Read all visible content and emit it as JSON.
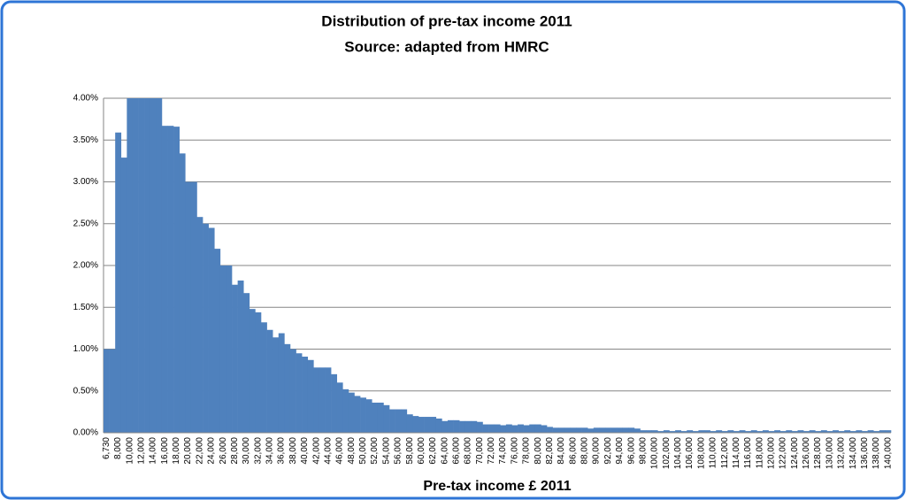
{
  "chart_data": {
    "type": "bar",
    "title": "Distribution of pre-tax income 2011",
    "subtitle": "Source: adapted from HMRC",
    "x_label": "Pre-tax income £ 2011",
    "color": "#4f81bd",
    "grid": true,
    "ylim": [
      0,
      4
    ],
    "yticks": [
      {
        "value": 0,
        "label": "0.00%"
      },
      {
        "value": 0.5,
        "label": "0.50%"
      },
      {
        "value": 1,
        "label": "1.00%"
      },
      {
        "value": 1.5,
        "label": "1.50%"
      },
      {
        "value": 2,
        "label": "2.00%"
      },
      {
        "value": 2.5,
        "label": "2.50%"
      },
      {
        "value": 3,
        "label": "3.00%"
      },
      {
        "value": 3.5,
        "label": "3.50%"
      },
      {
        "value": 4,
        "label": "4.00%"
      }
    ],
    "categories": [
      "6,730",
      null,
      "8,000",
      null,
      "10,000",
      null,
      "12,000",
      null,
      "14,000",
      null,
      "16,000",
      null,
      "18,000",
      null,
      "20,000",
      null,
      "22,000",
      null,
      "24,000",
      null,
      "26,000",
      null,
      "28,000",
      null,
      "30,000",
      null,
      "32,000",
      null,
      "34,000",
      null,
      "36,000",
      null,
      "38,000",
      null,
      "40,000",
      null,
      "42,000",
      null,
      "44,000",
      null,
      "46,000",
      null,
      "48,000",
      null,
      "50,000",
      null,
      "52,000",
      null,
      "54,000",
      null,
      "56,000",
      null,
      "58,000",
      null,
      "60,000",
      null,
      "62,000",
      null,
      "64,000",
      null,
      "66,000",
      null,
      "68,000",
      null,
      "70,000",
      null,
      "72,000",
      null,
      "74,000",
      null,
      "76,000",
      null,
      "78,000",
      null,
      "80,000",
      null,
      "82,000",
      null,
      "84,000",
      null,
      "86,000",
      null,
      "88,000",
      null,
      "90,000",
      null,
      "92,000",
      null,
      "94,000",
      null,
      "96,000",
      null,
      "98,000",
      null,
      "100,000",
      null,
      "102,000",
      null,
      "104,000",
      null,
      "106,000",
      null,
      "108,000",
      null,
      "110,000",
      null,
      "112,000",
      null,
      "114,000",
      null,
      "116,000",
      null,
      "118,000",
      null,
      "120,000",
      null,
      "122,000",
      null,
      "124,000",
      null,
      "126,000",
      null,
      "128,000",
      null,
      "130,000",
      null,
      "132,000",
      null,
      "134,000",
      null,
      "136,000",
      null,
      "138,000",
      null,
      "140,000"
    ],
    "values": [
      1.0,
      1.0,
      3.59,
      3.29,
      4,
      4,
      4,
      4,
      4,
      4,
      3.67,
      3.67,
      3.66,
      3.34,
      3.0,
      3.0,
      2.58,
      2.5,
      2.45,
      2.2,
      2.0,
      2.0,
      1.77,
      1.82,
      1.67,
      1.48,
      1.44,
      1.32,
      1.23,
      1.14,
      1.19,
      1.06,
      1.0,
      0.95,
      0.91,
      0.87,
      0.78,
      0.78,
      0.78,
      0.7,
      0.6,
      0.52,
      0.48,
      0.44,
      0.42,
      0.4,
      0.36,
      0.36,
      0.33,
      0.28,
      0.28,
      0.28,
      0.22,
      0.2,
      0.19,
      0.19,
      0.19,
      0.17,
      0.14,
      0.15,
      0.15,
      0.14,
      0.14,
      0.14,
      0.13,
      0.1,
      0.1,
      0.1,
      0.09,
      0.1,
      0.09,
      0.1,
      0.09,
      0.1,
      0.1,
      0.09,
      0.07,
      0.06,
      0.06,
      0.06,
      0.06,
      0.06,
      0.06,
      0.05,
      0.06,
      0.06,
      0.06,
      0.06,
      0.06,
      0.06,
      0.06,
      0.05,
      0.03,
      0.03,
      0.03,
      0.02,
      0.03,
      0.02,
      0.03,
      0.02,
      0.03,
      0.02,
      0.03,
      0.03,
      0.02,
      0.03,
      0.02,
      0.03,
      0.02,
      0.03,
      0.02,
      0.03,
      0.02,
      0.03,
      0.02,
      0.03,
      0.02,
      0.03,
      0.02,
      0.03,
      0.02,
      0.03,
      0.02,
      0.03,
      0.02,
      0.03,
      0.02,
      0.03,
      0.02,
      0.03,
      0.02,
      0.03,
      0.02,
      0.03,
      0.03
    ]
  }
}
